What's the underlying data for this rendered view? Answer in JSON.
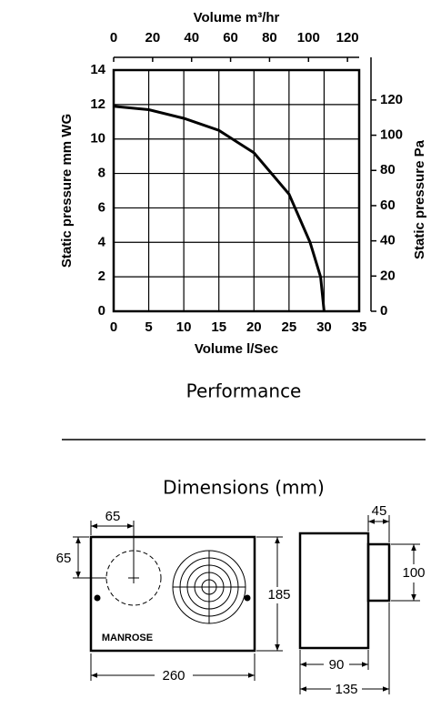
{
  "chart_data": {
    "type": "line",
    "x_title": "Volume l/Sec",
    "x2_title": "Volume m³/hr",
    "y_title": "Static pressure mm WG",
    "y2_title": "Static pressure Pa",
    "x": [
      0,
      5,
      10,
      15,
      20,
      25,
      28,
      29.5,
      30
    ],
    "values": [
      11.9,
      11.7,
      11.2,
      10.5,
      9.2,
      6.8,
      4,
      2,
      0
    ],
    "color": "#000000",
    "xlim": [
      0,
      35
    ],
    "xticks": [
      0,
      5,
      10,
      15,
      20,
      25,
      30,
      35
    ],
    "x2lim": [
      0,
      126
    ],
    "x2ticks": [
      0,
      20,
      40,
      60,
      80,
      100,
      120
    ],
    "ylim": [
      0,
      14
    ],
    "yticks": [
      0,
      2,
      4,
      6,
      8,
      10,
      12,
      14
    ],
    "y2lim": [
      0,
      137
    ],
    "y2ticks": [
      0,
      20,
      40,
      60,
      80,
      100,
      120
    ],
    "grid": true
  },
  "caption": "Performance",
  "dimensions": {
    "title": "Dimensions (mm)",
    "brand": "MANROSE",
    "labels": [
      65,
      65,
      185,
      260,
      45,
      100,
      90,
      135
    ]
  }
}
